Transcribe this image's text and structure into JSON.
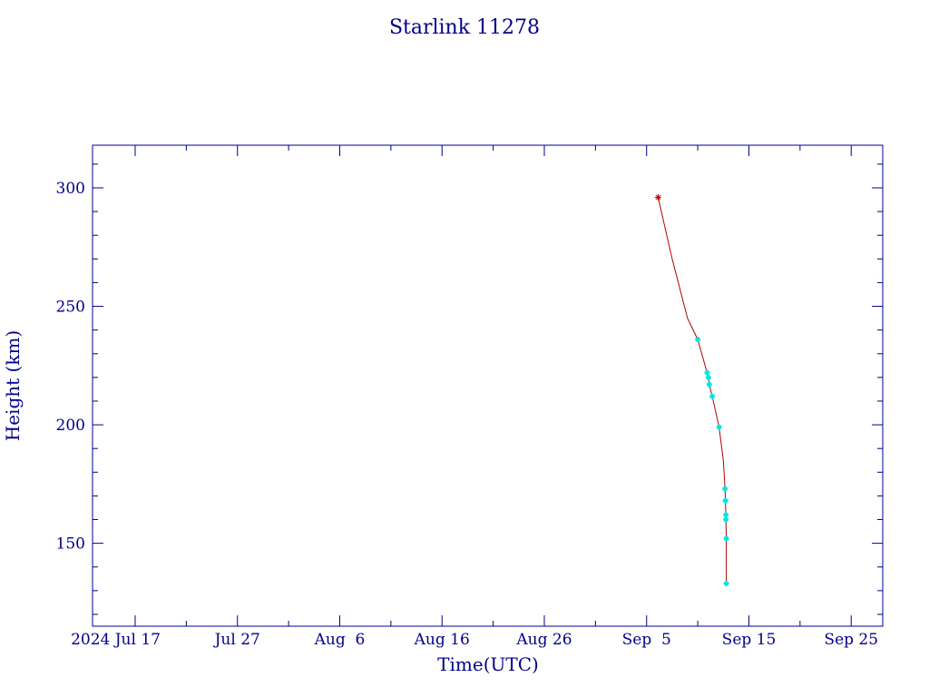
{
  "chart_data": {
    "type": "line",
    "title": "Starlink 11278",
    "xlabel": "Time(UTC)",
    "ylabel": "Height (km)",
    "x_ticks": [
      {
        "label": "2024 Jul 17",
        "date": "2024-07-17"
      },
      {
        "label": "Jul 27",
        "date": "2024-07-27"
      },
      {
        "label": "Aug  6",
        "date": "2024-08-06"
      },
      {
        "label": "Aug 16",
        "date": "2024-08-16"
      },
      {
        "label": "Aug 26",
        "date": "2024-08-26"
      },
      {
        "label": "Sep  5",
        "date": "2024-09-05"
      },
      {
        "label": "Sep 15",
        "date": "2024-09-15"
      },
      {
        "label": "Sep 25",
        "date": "2024-09-25"
      }
    ],
    "y_ticks": [
      150,
      200,
      250,
      300
    ],
    "xlim": [
      "2024-07-12T20:00",
      "2024-09-28T02:00"
    ],
    "ylim": [
      115,
      318
    ],
    "grid": false,
    "colors": {
      "axis": "#00008b",
      "line": "#b00000",
      "marker": "#00e5e5",
      "start_marker": "#b00000"
    },
    "series": [
      {
        "start": {
          "x": "2024-09-06T03:00",
          "y": 296
        },
        "points": [
          {
            "x": "2024-09-06T03:00",
            "y": 296
          },
          {
            "x": "2024-09-07T12:00",
            "y": 270
          },
          {
            "x": "2024-09-09T00:00",
            "y": 245
          },
          {
            "x": "2024-09-10T00:00",
            "y": 236
          },
          {
            "x": "2024-09-10T22:00",
            "y": 222
          },
          {
            "x": "2024-09-11T01:00",
            "y": 220
          },
          {
            "x": "2024-09-11T03:00",
            "y": 217
          },
          {
            "x": "2024-09-11T10:00",
            "y": 212
          },
          {
            "x": "2024-09-12T02:00",
            "y": 199
          },
          {
            "x": "2024-09-12T12:00",
            "y": 185
          },
          {
            "x": "2024-09-12T16:00",
            "y": 173
          },
          {
            "x": "2024-09-12T17:00",
            "y": 168
          },
          {
            "x": "2024-09-12T18:00",
            "y": 162
          },
          {
            "x": "2024-09-12T18:00",
            "y": 160
          },
          {
            "x": "2024-09-12T19:00",
            "y": 152
          },
          {
            "x": "2024-09-12T19:00",
            "y": 133
          }
        ],
        "markers": [
          {
            "x": "2024-09-10T00:00",
            "y": 236
          },
          {
            "x": "2024-09-10T22:00",
            "y": 222
          },
          {
            "x": "2024-09-11T01:00",
            "y": 220
          },
          {
            "x": "2024-09-11T03:00",
            "y": 217
          },
          {
            "x": "2024-09-11T10:00",
            "y": 212
          },
          {
            "x": "2024-09-12T02:00",
            "y": 199
          },
          {
            "x": "2024-09-12T16:00",
            "y": 173
          },
          {
            "x": "2024-09-12T17:00",
            "y": 168
          },
          {
            "x": "2024-09-12T18:00",
            "y": 162
          },
          {
            "x": "2024-09-12T18:00",
            "y": 160
          },
          {
            "x": "2024-09-12T19:00",
            "y": 152
          },
          {
            "x": "2024-09-12T19:00",
            "y": 133
          }
        ]
      }
    ]
  }
}
